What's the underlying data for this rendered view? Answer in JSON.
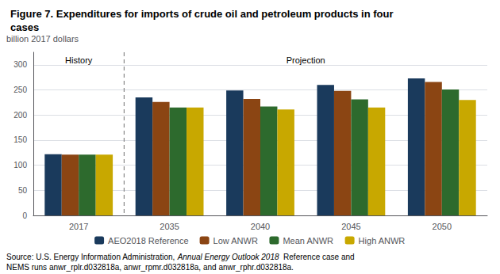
{
  "chart_data": {
    "type": "bar",
    "title": "Figure 7. Expenditures for imports of crude oil and petroleum products in four\ncases",
    "ylabel": "billion 2017 dollars",
    "categories": [
      "2017",
      "2035",
      "2040",
      "2045",
      "2050"
    ],
    "series": [
      {
        "name": "AEO2018 Reference",
        "color": "#1a3a5c",
        "values": [
          122,
          235,
          249,
          260,
          273
        ]
      },
      {
        "name": "Low ANWR",
        "color": "#8B4513",
        "values": [
          121,
          226,
          232,
          248,
          266
        ]
      },
      {
        "name": "Mean ANWR",
        "color": "#2d6a2d",
        "values": [
          121,
          215,
          217,
          231,
          251
        ]
      },
      {
        "name": "High ANWR",
        "color": "#c8a800",
        "values": [
          121,
          215,
          211,
          215,
          230
        ]
      }
    ],
    "ylim": [
      0,
      325
    ],
    "yticks": [
      0,
      50,
      100,
      150,
      200,
      250,
      300
    ],
    "grid": true,
    "legend": "bottom",
    "annotations": [
      "History",
      "Projection"
    ],
    "footnote": [
      "Source: U.S. Energy Information Administration, ",
      "Annual Energy Outlook 2018",
      "  Reference case and\nNEMS runs anwr_rplr.d032818a, anwr_rpmr.d032818a, and anwr_rphr.d032818a."
    ]
  }
}
